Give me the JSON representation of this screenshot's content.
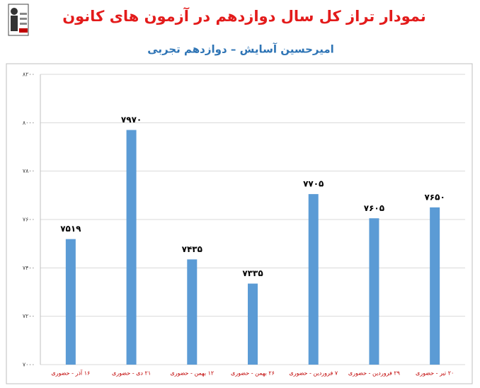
{
  "chart_data": {
    "type": "bar",
    "title": "نمودار تراز کل سال دوازدهم در آزمون های کانون",
    "subtitle": "امیرحسین آسایش – دوازدهم تجربی",
    "categories": [
      "۱۶ آذر - حضوری",
      "۲۱ دی - حضوری",
      "۱۲ بهمن - حضوری",
      "۲۶ بهمن - حضوری",
      "۷ فروردین - حضوری",
      "۲۹ فروردین - حضوری",
      "۲۰ تیر - حضوری"
    ],
    "values": [
      7519,
      7970,
      7435,
      7335,
      7705,
      7605,
      7650
    ],
    "value_labels": [
      "۷۵۱۹",
      "۷۹۷۰",
      "۷۴۳۵",
      "۷۳۳۵",
      "۷۷۰۵",
      "۷۶۰۵",
      "۷۶۵۰"
    ],
    "color": "#5b9bd5",
    "ylim": [
      7000,
      8200
    ],
    "yticks": [
      {
        "value": 7000,
        "label": "۷۰۰۰"
      },
      {
        "value": 7200,
        "label": "۷۲۰۰"
      },
      {
        "value": 7400,
        "label": "۷۴۰۰"
      },
      {
        "value": 7600,
        "label": "۷۶۰۰"
      },
      {
        "value": 7800,
        "label": "۷۸۰۰"
      },
      {
        "value": 8000,
        "label": "۸۰۰۰"
      },
      {
        "value": 8200,
        "label": "۸۲۰۰"
      }
    ],
    "grid": true
  }
}
